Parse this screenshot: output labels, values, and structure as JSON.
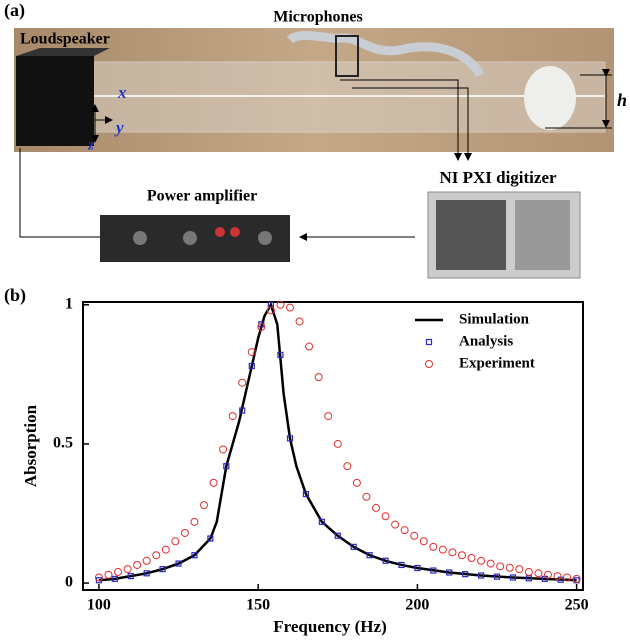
{
  "panel_a": {
    "label": "(a)",
    "microphones": "Microphones",
    "loudspeaker": "Loudspeaker",
    "axis_x": "x",
    "axis_y": "y",
    "axis_z": "z",
    "height": "h",
    "digitizer": "NI PXI digitizer",
    "amplifier": "Power amplifier"
  },
  "chart_data": {
    "type": "line",
    "panel_label": "(b)",
    "x_label": "Frequency (Hz)",
    "y_label": "Absorption",
    "xlim": [
      95,
      252
    ],
    "xticks": [
      100,
      150,
      200,
      250
    ],
    "ylim": [
      -0.025,
      1.01
    ],
    "yticks": [
      0,
      0.5,
      1
    ],
    "legend": "upper right",
    "series": [
      {
        "name": "Simulation",
        "color": "#000000",
        "marker": "line",
        "x": [
          100,
          105,
          110,
          115,
          120,
          125,
          130,
          135,
          137,
          140,
          142,
          144,
          146,
          148,
          150,
          152,
          154,
          156,
          158,
          160,
          162,
          165,
          170,
          175,
          180,
          185,
          190,
          195,
          200,
          210,
          220,
          230,
          240,
          250
        ],
        "values": [
          0.01,
          0.015,
          0.025,
          0.035,
          0.05,
          0.07,
          0.1,
          0.16,
          0.22,
          0.42,
          0.5,
          0.58,
          0.68,
          0.78,
          0.88,
          0.96,
          1.0,
          0.93,
          0.68,
          0.52,
          0.42,
          0.32,
          0.22,
          0.17,
          0.13,
          0.1,
          0.08,
          0.065,
          0.054,
          0.038,
          0.027,
          0.02,
          0.015,
          0.01
        ]
      },
      {
        "name": "Analysis",
        "color": "#2a2ab8",
        "marker": "square",
        "x": [
          100,
          105,
          110,
          115,
          120,
          125,
          130,
          135,
          140,
          145,
          148,
          151,
          154,
          157,
          160,
          165,
          170,
          175,
          180,
          185,
          190,
          195,
          200,
          205,
          210,
          215,
          220,
          225,
          230,
          235,
          240,
          245,
          250
        ],
        "values": [
          0.01,
          0.015,
          0.025,
          0.035,
          0.05,
          0.07,
          0.1,
          0.16,
          0.42,
          0.62,
          0.78,
          0.93,
          1.0,
          0.82,
          0.52,
          0.32,
          0.22,
          0.17,
          0.13,
          0.1,
          0.08,
          0.065,
          0.054,
          0.045,
          0.038,
          0.032,
          0.027,
          0.023,
          0.02,
          0.017,
          0.015,
          0.012,
          0.01
        ]
      },
      {
        "name": "Experiment",
        "color": "#e03030",
        "marker": "circle",
        "x": [
          100,
          103,
          106,
          109,
          112,
          115,
          118,
          121,
          124,
          127,
          130,
          133,
          136,
          139,
          142,
          145,
          148,
          151,
          154,
          157,
          160,
          163,
          166,
          169,
          172,
          175,
          178,
          181,
          184,
          187,
          190,
          193,
          196,
          199,
          202,
          205,
          208,
          211,
          214,
          217,
          220,
          223,
          226,
          229,
          232,
          235,
          238,
          241,
          244,
          247,
          250
        ],
        "values": [
          0.02,
          0.03,
          0.04,
          0.05,
          0.065,
          0.08,
          0.1,
          0.12,
          0.15,
          0.18,
          0.22,
          0.28,
          0.36,
          0.48,
          0.6,
          0.72,
          0.83,
          0.92,
          0.98,
          1.0,
          0.99,
          0.94,
          0.85,
          0.74,
          0.6,
          0.5,
          0.42,
          0.36,
          0.31,
          0.27,
          0.24,
          0.21,
          0.19,
          0.17,
          0.15,
          0.13,
          0.12,
          0.11,
          0.1,
          0.09,
          0.08,
          0.07,
          0.06,
          0.055,
          0.05,
          0.04,
          0.035,
          0.03,
          0.025,
          0.02,
          0.015
        ]
      }
    ]
  }
}
